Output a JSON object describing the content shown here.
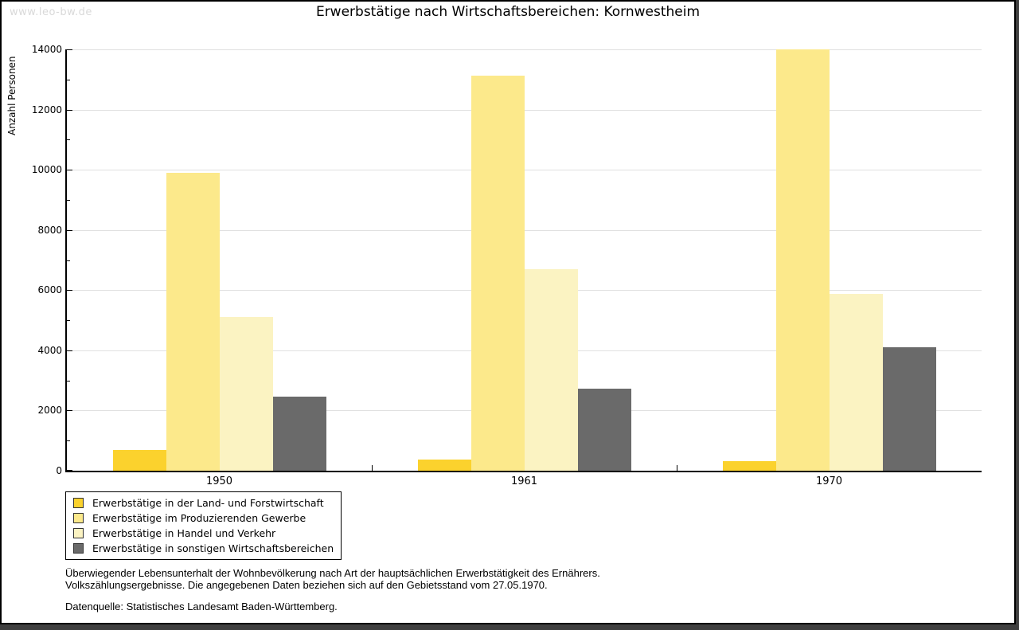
{
  "watermark": "www.leo-bw.de",
  "chart_data": {
    "type": "bar",
    "title": "Erwerbstätige nach Wirtschaftsbereichen: Kornwestheim",
    "xlabel": "",
    "ylabel": "Anzahl Personen",
    "categories": [
      "1950",
      "1961",
      "1970"
    ],
    "series": [
      {
        "name": "Erwerbstätige in der Land- und Forstwirtschaft",
        "color": "#FBD22D",
        "values": [
          690,
          370,
          310
        ]
      },
      {
        "name": "Erwerbstätige im Produzierenden Gewerbe",
        "color": "#FCE98B",
        "values": [
          9890,
          13130,
          13990
        ]
      },
      {
        "name": "Erwerbstätige in Handel und Verkehr",
        "color": "#FBF3C2",
        "values": [
          5100,
          6690,
          5880
        ]
      },
      {
        "name": "Erwerbstätige in sonstigen Wirtschaftsbereichen",
        "color": "#6A6A6A",
        "values": [
          2470,
          2720,
          4100
        ]
      }
    ],
    "ylim": [
      0,
      14000
    ],
    "ytick_step": 2000,
    "ytick_minor": 1000,
    "grid": true,
    "legend_position": "bottom-left",
    "gridline_color": "#E0E0E0"
  },
  "footnotes": [
    "Überwiegender Lebensunterhalt der Wohnbevölkerung nach Art der hauptsächlichen Erwerbstätigkeit des Ernährers.",
    "Volkszählungsergebnisse. Die angegebenen Daten beziehen sich auf den Gebietsstand vom 27.05.1970."
  ],
  "source": "Datenquelle: Statistisches Landesamt Baden-Württemberg."
}
